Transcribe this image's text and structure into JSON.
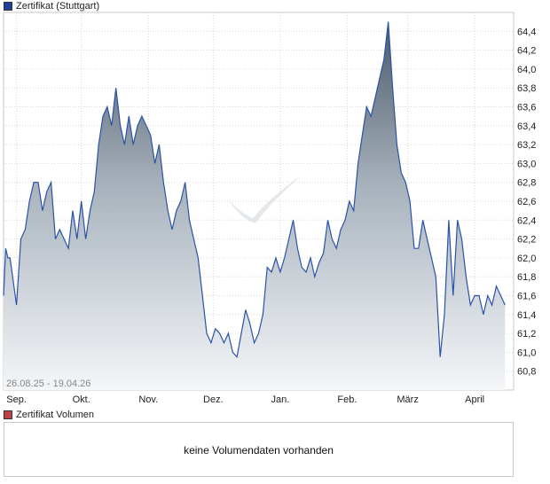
{
  "price_legend": {
    "label": "Zertifikat (Stuttgart)",
    "color": "#1f3f9a"
  },
  "volume_legend": {
    "label": "Zertifikat Volumen",
    "color": "#c0404a"
  },
  "volume_message": "keine Volumendaten vorhanden",
  "date_range": "26.08.25 - 19.04.26",
  "watermark": "",
  "chart_data": {
    "type": "area",
    "ylim": [
      60.6,
      64.6
    ],
    "y_ticks": [
      "60,8",
      "61,0",
      "61,2",
      "61,4",
      "61,6",
      "61,8",
      "62,0",
      "62,2",
      "62,4",
      "62,6",
      "62,8",
      "63,0",
      "63,2",
      "63,4",
      "63,6",
      "63,8",
      "64,0",
      "64,2",
      "64,4"
    ],
    "y_tick_values": [
      60.8,
      61.0,
      61.2,
      61.4,
      61.6,
      61.8,
      62.0,
      62.2,
      62.4,
      62.6,
      62.8,
      63.0,
      63.2,
      63.4,
      63.6,
      63.8,
      64.0,
      64.2,
      64.4
    ],
    "xlim": [
      "2025-08-26",
      "2026-04-19"
    ],
    "x_tick_labels": [
      {
        "label": "Sep.",
        "date": "2025-09-01"
      },
      {
        "label": "Okt.",
        "date": "2025-10-01"
      },
      {
        "label": "Nov.",
        "date": "2025-11-01"
      },
      {
        "label": "Dez.",
        "date": "2025-12-01"
      },
      {
        "label": "Jan.",
        "date": "2026-01-01"
      },
      {
        "label": "Feb.",
        "date": "2026-02-01"
      },
      {
        "label": "März",
        "date": "2026-03-01"
      },
      {
        "label": "April",
        "date": "2026-04-01"
      }
    ],
    "series": [
      {
        "line_color": "#2a52a8",
        "points": [
          [
            "2025-08-26",
            61.6
          ],
          [
            "2025-08-27",
            62.1
          ],
          [
            "2025-08-28",
            62.0
          ],
          [
            "2025-08-29",
            62.0
          ],
          [
            "2025-09-01",
            61.5
          ],
          [
            "2025-09-03",
            62.2
          ],
          [
            "2025-09-05",
            62.3
          ],
          [
            "2025-09-07",
            62.6
          ],
          [
            "2025-09-09",
            62.8
          ],
          [
            "2025-09-11",
            62.8
          ],
          [
            "2025-09-13",
            62.5
          ],
          [
            "2025-09-15",
            62.7
          ],
          [
            "2025-09-17",
            62.8
          ],
          [
            "2025-09-19",
            62.2
          ],
          [
            "2025-09-21",
            62.3
          ],
          [
            "2025-09-23",
            62.2
          ],
          [
            "2025-09-25",
            62.1
          ],
          [
            "2025-09-27",
            62.5
          ],
          [
            "2025-09-29",
            62.2
          ],
          [
            "2025-10-01",
            62.6
          ],
          [
            "2025-10-03",
            62.2
          ],
          [
            "2025-10-05",
            62.5
          ],
          [
            "2025-10-07",
            62.7
          ],
          [
            "2025-10-09",
            63.2
          ],
          [
            "2025-10-11",
            63.5
          ],
          [
            "2025-10-13",
            63.6
          ],
          [
            "2025-10-15",
            63.4
          ],
          [
            "2025-10-17",
            63.8
          ],
          [
            "2025-10-19",
            63.4
          ],
          [
            "2025-10-21",
            63.2
          ],
          [
            "2025-10-23",
            63.5
          ],
          [
            "2025-10-25",
            63.2
          ],
          [
            "2025-10-27",
            63.4
          ],
          [
            "2025-10-29",
            63.5
          ],
          [
            "2025-10-31",
            63.4
          ],
          [
            "2025-11-02",
            63.3
          ],
          [
            "2025-11-04",
            63.0
          ],
          [
            "2025-11-06",
            63.2
          ],
          [
            "2025-11-08",
            62.8
          ],
          [
            "2025-11-10",
            62.5
          ],
          [
            "2025-11-12",
            62.3
          ],
          [
            "2025-11-14",
            62.5
          ],
          [
            "2025-11-16",
            62.6
          ],
          [
            "2025-11-18",
            62.8
          ],
          [
            "2025-11-20",
            62.4
          ],
          [
            "2025-11-22",
            62.2
          ],
          [
            "2025-11-24",
            62.0
          ],
          [
            "2025-11-26",
            61.6
          ],
          [
            "2025-11-28",
            61.2
          ],
          [
            "2025-11-30",
            61.1
          ],
          [
            "2025-12-02",
            61.25
          ],
          [
            "2025-12-04",
            61.2
          ],
          [
            "2025-12-06",
            61.1
          ],
          [
            "2025-12-08",
            61.2
          ],
          [
            "2025-12-10",
            61.0
          ],
          [
            "2025-12-12",
            60.95
          ],
          [
            "2025-12-14",
            61.2
          ],
          [
            "2025-12-16",
            61.45
          ],
          [
            "2025-12-18",
            61.3
          ],
          [
            "2025-12-20",
            61.1
          ],
          [
            "2025-12-22",
            61.2
          ],
          [
            "2025-12-24",
            61.4
          ],
          [
            "2025-12-26",
            61.9
          ],
          [
            "2025-12-28",
            61.85
          ],
          [
            "2025-12-30",
            62.0
          ],
          [
            "2026-01-01",
            61.85
          ],
          [
            "2026-01-03",
            62.0
          ],
          [
            "2026-01-05",
            62.2
          ],
          [
            "2026-01-07",
            62.4
          ],
          [
            "2026-01-09",
            62.1
          ],
          [
            "2026-01-11",
            61.9
          ],
          [
            "2026-01-13",
            61.85
          ],
          [
            "2026-01-15",
            62.0
          ],
          [
            "2026-01-17",
            61.8
          ],
          [
            "2026-01-19",
            61.95
          ],
          [
            "2026-01-21",
            62.05
          ],
          [
            "2026-01-23",
            62.4
          ],
          [
            "2026-01-25",
            62.2
          ],
          [
            "2026-01-27",
            62.1
          ],
          [
            "2026-01-29",
            62.3
          ],
          [
            "2026-01-31",
            62.4
          ],
          [
            "2026-02-02",
            62.6
          ],
          [
            "2026-02-04",
            62.5
          ],
          [
            "2026-02-06",
            63.0
          ],
          [
            "2026-02-08",
            63.3
          ],
          [
            "2026-02-10",
            63.6
          ],
          [
            "2026-02-12",
            63.5
          ],
          [
            "2026-02-14",
            63.7
          ],
          [
            "2026-02-16",
            63.9
          ],
          [
            "2026-02-18",
            64.1
          ],
          [
            "2026-02-20",
            64.5
          ],
          [
            "2026-02-22",
            63.8
          ],
          [
            "2026-02-24",
            63.2
          ],
          [
            "2026-02-26",
            62.9
          ],
          [
            "2026-02-28",
            62.8
          ],
          [
            "2026-03-02",
            62.6
          ],
          [
            "2026-03-04",
            62.1
          ],
          [
            "2026-03-06",
            62.1
          ],
          [
            "2026-03-08",
            62.4
          ],
          [
            "2026-03-10",
            62.2
          ],
          [
            "2026-03-12",
            62.0
          ],
          [
            "2026-03-14",
            61.8
          ],
          [
            "2026-03-16",
            60.95
          ],
          [
            "2026-03-18",
            61.4
          ],
          [
            "2026-03-20",
            62.4
          ],
          [
            "2026-03-22",
            61.6
          ],
          [
            "2026-03-24",
            62.4
          ],
          [
            "2026-03-26",
            62.2
          ],
          [
            "2026-03-28",
            61.8
          ],
          [
            "2026-03-30",
            61.5
          ],
          [
            "2026-04-01",
            61.6
          ],
          [
            "2026-04-03",
            61.6
          ],
          [
            "2026-04-05",
            61.4
          ],
          [
            "2026-04-07",
            61.6
          ],
          [
            "2026-04-09",
            61.5
          ],
          [
            "2026-04-11",
            61.7
          ],
          [
            "2026-04-13",
            61.6
          ],
          [
            "2026-04-15",
            61.5
          ]
        ]
      }
    ]
  }
}
